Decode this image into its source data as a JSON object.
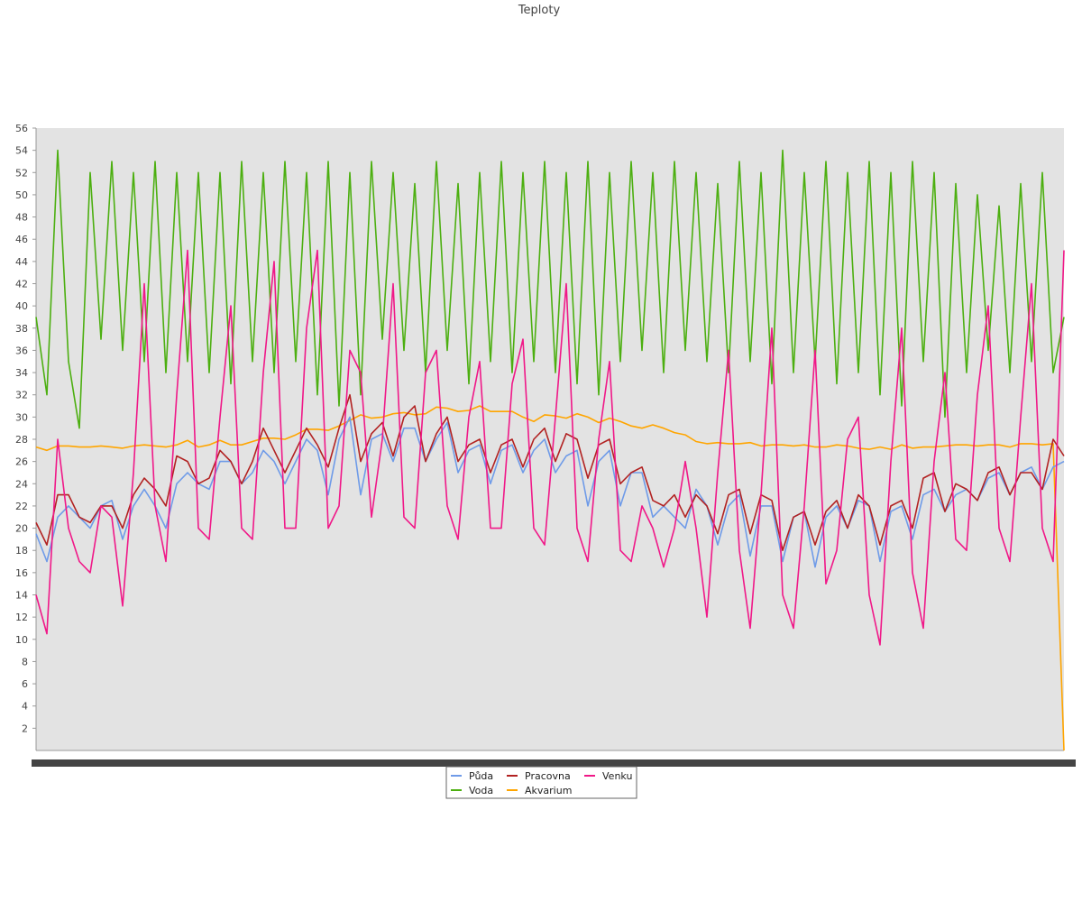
{
  "chart_data": {
    "type": "line",
    "title": "Teploty",
    "xlabel": "",
    "ylabel": "",
    "ylim": [
      0,
      56
    ],
    "yticks": [
      2,
      4,
      6,
      8,
      10,
      12,
      14,
      16,
      18,
      20,
      22,
      24,
      26,
      28,
      30,
      32,
      34,
      36,
      38,
      40,
      42,
      44,
      46,
      48,
      50,
      52,
      54,
      56
    ],
    "grid": false,
    "legend_position": "bottom-center",
    "x": [
      0,
      1,
      2,
      3,
      4,
      5,
      6,
      7,
      8,
      9,
      10,
      11,
      12,
      13,
      14,
      15,
      16,
      17,
      18,
      19,
      20,
      21,
      22,
      23,
      24,
      25,
      26,
      27,
      28,
      29,
      30,
      31,
      32,
      33,
      34,
      35,
      36,
      37,
      38,
      39,
      40,
      41,
      42,
      43,
      44,
      45,
      46,
      47,
      48,
      49,
      50,
      51,
      52,
      53,
      54,
      55,
      56,
      57,
      58,
      59,
      60,
      61,
      62,
      63,
      64,
      65,
      66,
      67,
      68,
      69,
      70,
      71,
      72,
      73,
      74,
      75,
      76,
      77,
      78,
      79,
      80,
      81,
      82,
      83,
      84,
      85,
      86,
      87,
      88,
      89,
      90,
      91,
      92,
      93,
      94,
      95
    ],
    "series": [
      {
        "name": "Půda",
        "color": "#6f9be8",
        "values": [
          19.5,
          17.0,
          21.0,
          22.0,
          21.0,
          20.0,
          22.0,
          22.5,
          19.0,
          22.0,
          23.5,
          22.0,
          20.0,
          24.0,
          25.0,
          24.0,
          23.5,
          26.0,
          26.0,
          24.0,
          25.0,
          27.0,
          26.0,
          24.0,
          26.0,
          28.0,
          27.0,
          23.0,
          28.0,
          30.0,
          23.0,
          28.0,
          28.5,
          26.0,
          29.0,
          29.0,
          26.0,
          28.0,
          29.5,
          25.0,
          27.0,
          27.5,
          24.0,
          27.0,
          27.5,
          25.0,
          27.0,
          28.0,
          25.0,
          26.5,
          27.0,
          22.0,
          26.0,
          27.0,
          22.0,
          25.0,
          25.0,
          21.0,
          22.0,
          21.0,
          20.0,
          23.5,
          22.0,
          18.5,
          22.0,
          23.0,
          17.5,
          22.0,
          22.0,
          17.0,
          21.0,
          21.5,
          16.5,
          21.0,
          22.0,
          20.0,
          22.5,
          22.0,
          17.0,
          21.5,
          22.0,
          19.0,
          23.0,
          23.5,
          21.5,
          23.0,
          23.5,
          22.5,
          24.5,
          25.0,
          23.0,
          25.0,
          25.5,
          23.5,
          25.5,
          26.0
        ]
      },
      {
        "name": "Pracovna",
        "color": "#b22222",
        "values": [
          20.5,
          18.5,
          23.0,
          23.0,
          21.0,
          20.5,
          22.0,
          22.0,
          20.0,
          23.0,
          24.5,
          23.5,
          22.0,
          26.5,
          26.0,
          24.0,
          24.5,
          27.0,
          26.0,
          24.0,
          26.0,
          29.0,
          27.0,
          25.0,
          27.0,
          29.0,
          27.5,
          25.5,
          29.0,
          32.0,
          26.0,
          28.5,
          29.5,
          26.5,
          30.0,
          31.0,
          26.0,
          28.5,
          30.0,
          26.0,
          27.5,
          28.0,
          25.0,
          27.5,
          28.0,
          25.5,
          28.0,
          29.0,
          26.0,
          28.5,
          28.0,
          24.5,
          27.5,
          28.0,
          24.0,
          25.0,
          25.5,
          22.5,
          22.0,
          23.0,
          21.0,
          23.0,
          22.0,
          19.5,
          23.0,
          23.5,
          19.5,
          23.0,
          22.5,
          18.0,
          21.0,
          21.5,
          18.5,
          21.5,
          22.5,
          20.0,
          23.0,
          22.0,
          18.5,
          22.0,
          22.5,
          20.0,
          24.5,
          25.0,
          21.5,
          24.0,
          23.5,
          22.5,
          25.0,
          25.5,
          23.0,
          25.0,
          25.0,
          23.5,
          28.0,
          26.5
        ]
      },
      {
        "name": "Venku",
        "color": "#f01888",
        "values": [
          14.0,
          10.5,
          28.0,
          20.0,
          17.0,
          16.0,
          22.0,
          21.0,
          13.0,
          25.0,
          42.0,
          22.0,
          17.0,
          32.0,
          45.0,
          20.0,
          19.0,
          30.0,
          40.0,
          20.0,
          19.0,
          34.0,
          44.0,
          20.0,
          20.0,
          38.0,
          45.0,
          20.0,
          22.0,
          36.0,
          34.0,
          21.0,
          28.0,
          42.0,
          21.0,
          20.0,
          34.0,
          36.0,
          22.0,
          19.0,
          30.0,
          35.0,
          20.0,
          20.0,
          33.0,
          37.0,
          20.0,
          18.5,
          30.0,
          42.0,
          20.0,
          17.0,
          28.0,
          35.0,
          18.0,
          17.0,
          22.0,
          20.0,
          16.5,
          20.0,
          26.0,
          20.0,
          12.0,
          25.0,
          36.0,
          18.0,
          11.0,
          23.0,
          38.0,
          14.0,
          11.0,
          22.0,
          36.0,
          15.0,
          18.0,
          28.0,
          30.0,
          14.0,
          9.5,
          26.0,
          38.0,
          16.0,
          11.0,
          26.0,
          34.0,
          19.0,
          18.0,
          32.0,
          40.0,
          20.0,
          17.0,
          30.0,
          42.0,
          20.0,
          17.0,
          45.0
        ]
      },
      {
        "name": "Voda",
        "color": "#4caf10",
        "values": [
          39.0,
          32.0,
          54.0,
          35.0,
          29.0,
          52.0,
          37.0,
          53.0,
          36.0,
          52.0,
          35.0,
          53.0,
          34.0,
          52.0,
          35.0,
          52.0,
          34.0,
          52.0,
          33.0,
          53.0,
          35.0,
          52.0,
          34.0,
          53.0,
          35.0,
          52.0,
          32.0,
          53.0,
          31.0,
          52.0,
          32.0,
          53.0,
          37.0,
          52.0,
          36.0,
          51.0,
          34.0,
          53.0,
          36.0,
          51.0,
          33.0,
          52.0,
          35.0,
          53.0,
          34.0,
          52.0,
          35.0,
          53.0,
          34.0,
          52.0,
          33.0,
          53.0,
          32.0,
          52.0,
          35.0,
          53.0,
          36.0,
          52.0,
          34.0,
          53.0,
          36.0,
          52.0,
          35.0,
          51.0,
          34.0,
          53.0,
          35.0,
          52.0,
          33.0,
          54.0,
          34.0,
          52.0,
          35.0,
          53.0,
          33.0,
          52.0,
          34.0,
          53.0,
          32.0,
          52.0,
          31.0,
          53.0,
          35.0,
          52.0,
          30.0,
          51.0,
          34.0,
          50.0,
          36.0,
          49.0,
          34.0,
          51.0,
          35.0,
          52.0,
          34.0,
          39.0
        ]
      },
      {
        "name": "Akvarium",
        "color": "#ffa500",
        "values": [
          27.3,
          27.0,
          27.4,
          27.4,
          27.3,
          27.3,
          27.4,
          27.3,
          27.2,
          27.4,
          27.5,
          27.4,
          27.3,
          27.5,
          27.9,
          27.3,
          27.5,
          27.9,
          27.5,
          27.5,
          27.8,
          28.1,
          28.1,
          28.0,
          28.4,
          28.9,
          28.9,
          28.8,
          29.2,
          29.7,
          30.2,
          29.9,
          30.0,
          30.3,
          30.4,
          30.2,
          30.3,
          30.9,
          30.8,
          30.5,
          30.6,
          31.0,
          30.5,
          30.5,
          30.5,
          30.0,
          29.6,
          30.2,
          30.1,
          29.9,
          30.3,
          30.0,
          29.5,
          29.9,
          29.6,
          29.2,
          29.0,
          29.3,
          29.0,
          28.6,
          28.4,
          27.8,
          27.6,
          27.7,
          27.6,
          27.6,
          27.7,
          27.4,
          27.5,
          27.5,
          27.4,
          27.5,
          27.3,
          27.3,
          27.5,
          27.4,
          27.2,
          27.1,
          27.3,
          27.1,
          27.5,
          27.2,
          27.3,
          27.3,
          27.4,
          27.5,
          27.5,
          27.4,
          27.5,
          27.5,
          27.3,
          27.6,
          27.6,
          27.5,
          27.6,
          0.0
        ]
      }
    ],
    "legend": [
      "Půda",
      "Voda",
      "Pracovna",
      "Akvarium",
      "Venku"
    ]
  },
  "colors": {
    "plot_background": "#e3e3e3",
    "axis": "#999999"
  }
}
